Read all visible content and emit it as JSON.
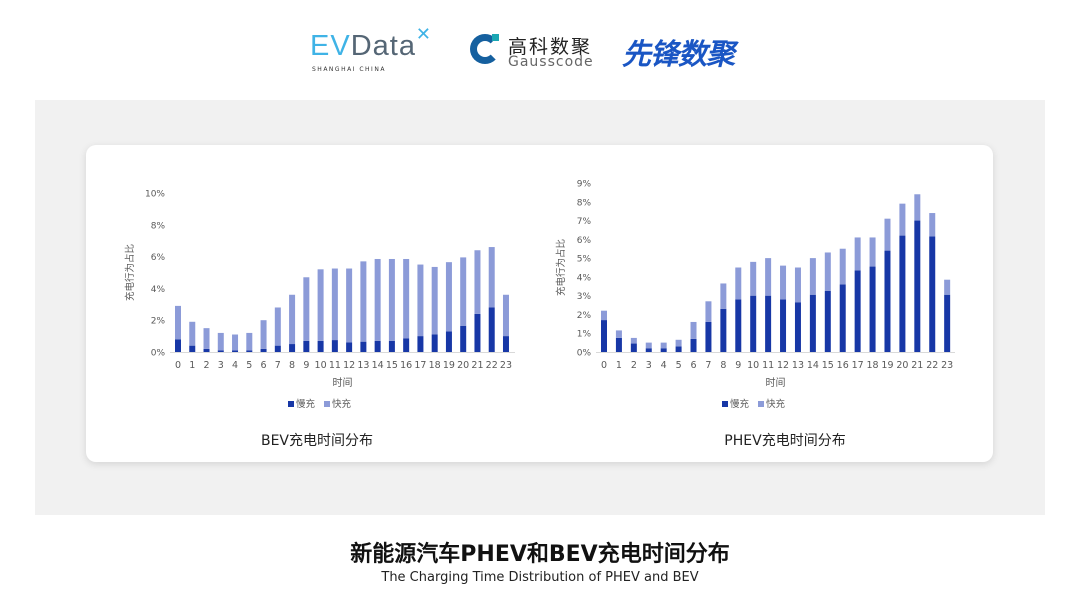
{
  "logos": {
    "evdata": {
      "ev": "EV",
      "data": "Data",
      "sub": "SHANGHAI CHINA"
    },
    "gausscode": {
      "cn": "高科数聚",
      "en": "Gausscode"
    },
    "xianfeng": {
      "cn": "先锋数聚"
    }
  },
  "colors": {
    "slow": "#1737a6",
    "fast": "#8c9bd8",
    "axis": "#d9d9d9",
    "tick": "#595959"
  },
  "chart_data": [
    {
      "type": "bar",
      "stacked": true,
      "caption": "BEV充电时间分布",
      "xlabel": "时间",
      "ylabel": "充电行为占比",
      "categories": [
        "0",
        "1",
        "2",
        "3",
        "4",
        "5",
        "6",
        "7",
        "8",
        "9",
        "10",
        "11",
        "12",
        "13",
        "14",
        "15",
        "16",
        "17",
        "18",
        "19",
        "20",
        "21",
        "22",
        "23"
      ],
      "ylim": [
        0,
        10
      ],
      "yticks": [
        "0%",
        "2%",
        "4%",
        "6%",
        "8%",
        "10%"
      ],
      "ytick_values": [
        0,
        2,
        4,
        6,
        8,
        10
      ],
      "legend": "bottom",
      "grid": false,
      "series": [
        {
          "name": "慢充",
          "values": [
            0.8,
            0.4,
            0.2,
            0.1,
            0.1,
            0.1,
            0.2,
            0.4,
            0.5,
            0.7,
            0.7,
            0.75,
            0.6,
            0.65,
            0.7,
            0.7,
            0.85,
            1.0,
            1.1,
            1.3,
            1.65,
            2.4,
            2.8,
            1.0
          ]
        },
        {
          "name": "快充",
          "values": [
            2.1,
            1.5,
            1.3,
            1.1,
            1.0,
            1.1,
            1.8,
            2.4,
            3.1,
            4.0,
            4.5,
            4.5,
            4.65,
            5.05,
            5.15,
            5.15,
            5.0,
            4.5,
            4.25,
            4.35,
            4.3,
            4.0,
            3.8,
            2.6
          ]
        }
      ]
    },
    {
      "type": "bar",
      "stacked": true,
      "caption": "PHEV充电时间分布",
      "xlabel": "时间",
      "ylabel": "充电行为占比",
      "categories": [
        "0",
        "1",
        "2",
        "3",
        "4",
        "5",
        "6",
        "7",
        "8",
        "9",
        "10",
        "11",
        "12",
        "13",
        "14",
        "15",
        "16",
        "17",
        "18",
        "19",
        "20",
        "21",
        "22",
        "23"
      ],
      "ylim": [
        0,
        9
      ],
      "yticks": [
        "0%",
        "1%",
        "2%",
        "3%",
        "4%",
        "5%",
        "6%",
        "7%",
        "8%",
        "9%"
      ],
      "ytick_values": [
        0,
        1,
        2,
        3,
        4,
        5,
        6,
        7,
        8,
        9
      ],
      "legend": "bottom",
      "grid": false,
      "series": [
        {
          "name": "慢充",
          "values": [
            1.7,
            0.75,
            0.45,
            0.2,
            0.2,
            0.3,
            0.7,
            1.6,
            2.3,
            2.8,
            3.0,
            3.0,
            2.8,
            2.65,
            3.05,
            3.25,
            3.6,
            4.35,
            4.55,
            5.4,
            6.2,
            7.0,
            6.15,
            3.05
          ]
        },
        {
          "name": "快充",
          "values": [
            0.5,
            0.4,
            0.3,
            0.3,
            0.3,
            0.35,
            0.9,
            1.1,
            1.35,
            1.7,
            1.8,
            2.0,
            1.8,
            1.85,
            1.95,
            2.05,
            1.9,
            1.75,
            1.55,
            1.7,
            1.7,
            1.4,
            1.25,
            0.8
          ]
        }
      ]
    }
  ],
  "footer": {
    "title": "新能源汽车PHEV和BEV充电时间分布",
    "subtitle": "The Charging Time Distribution of PHEV and BEV"
  }
}
